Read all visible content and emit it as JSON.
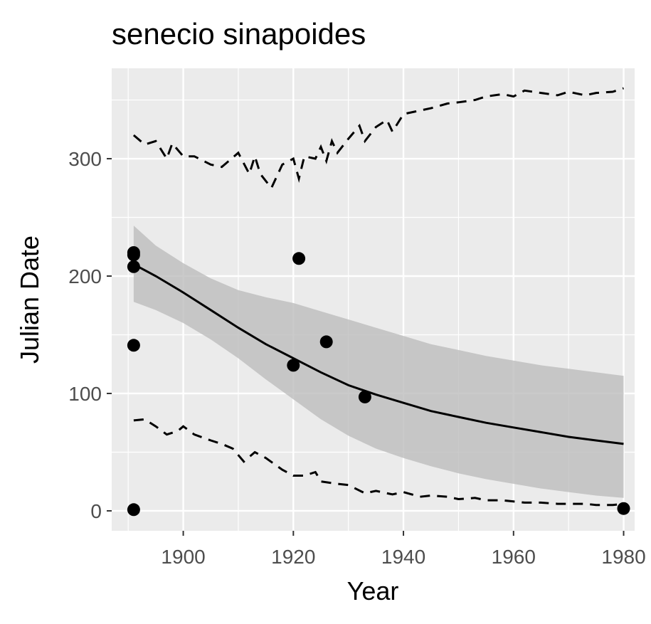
{
  "chart_data": {
    "type": "scatter",
    "title": "senecio sinapoides",
    "xlabel": "Year",
    "ylabel": "Julian Date",
    "xlim": [
      1887,
      1982
    ],
    "ylim": [
      -17,
      377
    ],
    "x_ticks": [
      1900,
      1920,
      1940,
      1960,
      1980
    ],
    "y_ticks": [
      0,
      100,
      200,
      300
    ],
    "x_tick_labels": [
      "1900",
      "1920",
      "1940",
      "1960",
      "1980"
    ],
    "y_tick_labels": [
      "0",
      "100",
      "200",
      "300"
    ],
    "grid": true,
    "colors": {
      "panel_background": "#ebebeb",
      "grid": "#ffffff",
      "points": "#000000",
      "fit_line": "#000000",
      "ribbon": "#bdbdbd",
      "dashed_bounds": "#000000"
    },
    "points": [
      {
        "x": 1891,
        "y": 220
      },
      {
        "x": 1891,
        "y": 218
      },
      {
        "x": 1891,
        "y": 208
      },
      {
        "x": 1891,
        "y": 141
      },
      {
        "x": 1891,
        "y": 1
      },
      {
        "x": 1920,
        "y": 124
      },
      {
        "x": 1921,
        "y": 215
      },
      {
        "x": 1926,
        "y": 144
      },
      {
        "x": 1933,
        "y": 97
      },
      {
        "x": 1980,
        "y": 2
      }
    ],
    "fit_line": {
      "x": [
        1891,
        1895,
        1900,
        1905,
        1910,
        1915,
        1920,
        1925,
        1930,
        1935,
        1940,
        1945,
        1950,
        1955,
        1960,
        1965,
        1970,
        1975,
        1980
      ],
      "y": [
        210,
        200,
        186,
        171,
        156,
        142,
        130,
        118,
        107,
        99,
        92,
        85,
        80,
        75,
        71,
        67,
        63,
        60,
        57
      ]
    },
    "confidence_band": {
      "x": [
        1891,
        1895,
        1900,
        1905,
        1910,
        1915,
        1920,
        1925,
        1930,
        1935,
        1940,
        1945,
        1950,
        1955,
        1960,
        1965,
        1970,
        1975,
        1980
      ],
      "lower": [
        178,
        171,
        160,
        146,
        130,
        112,
        95,
        78,
        64,
        53,
        45,
        38,
        32,
        27,
        23,
        19,
        16,
        13,
        11
      ],
      "upper": [
        243,
        226,
        211,
        198,
        188,
        182,
        177,
        170,
        163,
        156,
        149,
        142,
        137,
        132,
        128,
        124,
        121,
        118,
        115
      ]
    },
    "upper_bound": {
      "x": [
        1891,
        1893,
        1895,
        1897,
        1898,
        1900,
        1902,
        1905,
        1907,
        1908,
        1910,
        1912,
        1913,
        1914,
        1916,
        1918,
        1920,
        1921,
        1922,
        1924,
        1925,
        1926,
        1927,
        1928,
        1930,
        1932,
        1933,
        1935,
        1937,
        1938,
        1940,
        1942,
        1945,
        1948,
        1950,
        1953,
        1955,
        1958,
        1960,
        1962,
        1965,
        1968,
        1970,
        1973,
        1975,
        1978,
        1980
      ],
      "y": [
        320,
        312,
        315,
        300,
        313,
        302,
        302,
        295,
        293,
        297,
        305,
        287,
        302,
        287,
        275,
        295,
        300,
        283,
        302,
        300,
        310,
        298,
        315,
        305,
        317,
        328,
        315,
        327,
        333,
        323,
        338,
        340,
        343,
        347,
        348,
        350,
        353,
        355,
        353,
        358,
        356,
        354,
        357,
        354,
        356,
        357,
        360
      ]
    },
    "lower_bound": {
      "x": [
        1891,
        1893,
        1895,
        1897,
        1899,
        1900,
        1902,
        1905,
        1907,
        1909,
        1911,
        1913,
        1915,
        1918,
        1920,
        1922,
        1924,
        1925,
        1928,
        1930,
        1933,
        1935,
        1938,
        1940,
        1943,
        1945,
        1948,
        1950,
        1953,
        1955,
        1958,
        1960,
        1962,
        1965,
        1968,
        1970,
        1973,
        1975,
        1978,
        1980
      ],
      "y": [
        77,
        78,
        72,
        65,
        68,
        72,
        65,
        60,
        57,
        53,
        42,
        50,
        45,
        35,
        30,
        30,
        33,
        25,
        23,
        22,
        15,
        17,
        14,
        16,
        12,
        13,
        12,
        10,
        11,
        9,
        9,
        8,
        7,
        7,
        6,
        6,
        6,
        5,
        5,
        6
      ]
    }
  }
}
